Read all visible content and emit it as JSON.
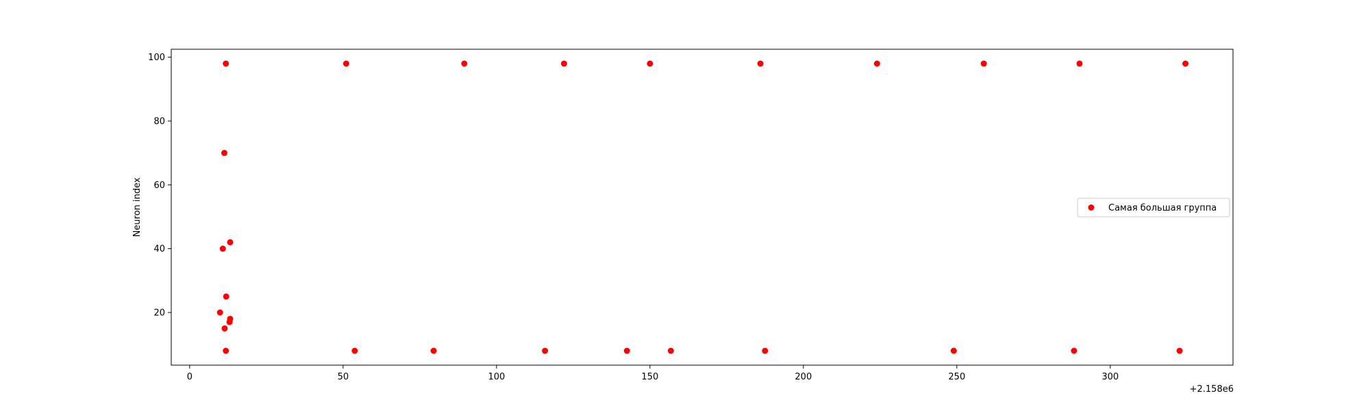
{
  "chart_data": {
    "type": "scatter",
    "title": "",
    "xlabel": "",
    "ylabel": "Neuron index",
    "x_offset_label": "+2.158e6",
    "xlim": [
      -6,
      340
    ],
    "ylim": [
      3.5,
      102.5
    ],
    "xticks": [
      0,
      50,
      100,
      150,
      200,
      250,
      300
    ],
    "yticks": [
      20,
      40,
      60,
      80,
      100
    ],
    "grid": false,
    "legend_position": "center-right",
    "colors": {
      "series": "#ff0000",
      "axes": "#000000",
      "legend_border": "#cccccc"
    },
    "series": [
      {
        "name": "Самая большая группа",
        "points": [
          {
            "x": 11.8,
            "y": 98
          },
          {
            "x": 51.0,
            "y": 98
          },
          {
            "x": 89.5,
            "y": 98
          },
          {
            "x": 122.0,
            "y": 98
          },
          {
            "x": 150.0,
            "y": 98
          },
          {
            "x": 186.0,
            "y": 98
          },
          {
            "x": 224.0,
            "y": 98
          },
          {
            "x": 258.8,
            "y": 98
          },
          {
            "x": 290.0,
            "y": 98
          },
          {
            "x": 324.5,
            "y": 98
          },
          {
            "x": 11.3,
            "y": 70
          },
          {
            "x": 13.2,
            "y": 42
          },
          {
            "x": 10.8,
            "y": 40
          },
          {
            "x": 11.9,
            "y": 25
          },
          {
            "x": 9.9,
            "y": 20
          },
          {
            "x": 13.2,
            "y": 18
          },
          {
            "x": 13.0,
            "y": 17
          },
          {
            "x": 11.4,
            "y": 15
          },
          {
            "x": 11.8,
            "y": 8
          },
          {
            "x": 53.8,
            "y": 8
          },
          {
            "x": 79.5,
            "y": 8
          },
          {
            "x": 115.8,
            "y": 8
          },
          {
            "x": 142.5,
            "y": 8
          },
          {
            "x": 156.8,
            "y": 8
          },
          {
            "x": 187.5,
            "y": 8
          },
          {
            "x": 249.0,
            "y": 8
          },
          {
            "x": 288.2,
            "y": 8
          },
          {
            "x": 322.6,
            "y": 8
          }
        ]
      }
    ]
  }
}
